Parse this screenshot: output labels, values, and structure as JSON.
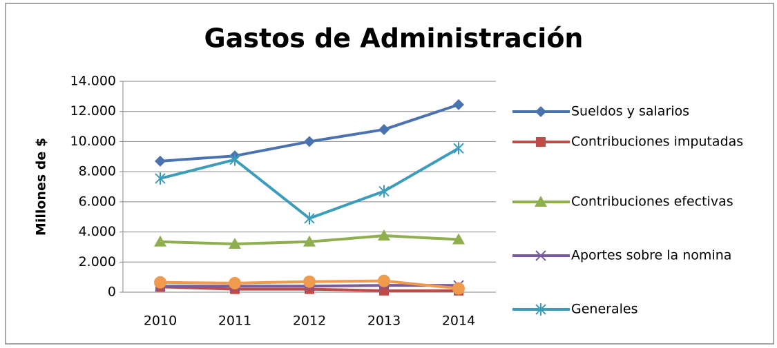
{
  "chart_data": {
    "type": "line",
    "title": "Gastos de Administración",
    "ylabel": "Millones de $",
    "categories": [
      "2010",
      "2011",
      "2012",
      "2013",
      "2014"
    ],
    "series": [
      {
        "name": "Sueldos y salarios",
        "color": "#4a72b0",
        "marker": "diamond",
        "values": [
          8700,
          9050,
          10000,
          10800,
          12450
        ]
      },
      {
        "name": "Contribuciones imputadas",
        "color": "#bf4b48",
        "marker": "square",
        "values": [
          350,
          200,
          200,
          100,
          100
        ]
      },
      {
        "name": "Contribuciones efectivas",
        "color": "#8fae4e",
        "marker": "triangle",
        "values": [
          3350,
          3200,
          3350,
          3750,
          3500
        ]
      },
      {
        "name": "Aportes sobre la nomina",
        "color": "#7a5a9e",
        "marker": "x",
        "values": [
          400,
          400,
          400,
          450,
          450
        ]
      },
      {
        "name": "Generales",
        "color": "#3c9dbb",
        "marker": "star",
        "values": [
          7550,
          8800,
          4900,
          6700,
          9550
        ]
      },
      {
        "color": "#f09a4d",
        "marker": "circle",
        "values": [
          650,
          600,
          700,
          750,
          250
        ]
      }
    ],
    "ylim": [
      0,
      14000
    ],
    "yticks": [
      0,
      {
        "value": 2000,
        "label": "2.000"
      },
      {
        "value": 4000,
        "label": "4.000"
      },
      {
        "value": 6000,
        "label": "6.000"
      },
      {
        "value": 8000,
        "label": "8.000"
      },
      {
        "value": 10000,
        "label": "10.000"
      },
      {
        "value": 12000,
        "label": "12.000"
      },
      {
        "value": 14000,
        "label": "14.000"
      }
    ],
    "grid": true,
    "legend": "right"
  }
}
